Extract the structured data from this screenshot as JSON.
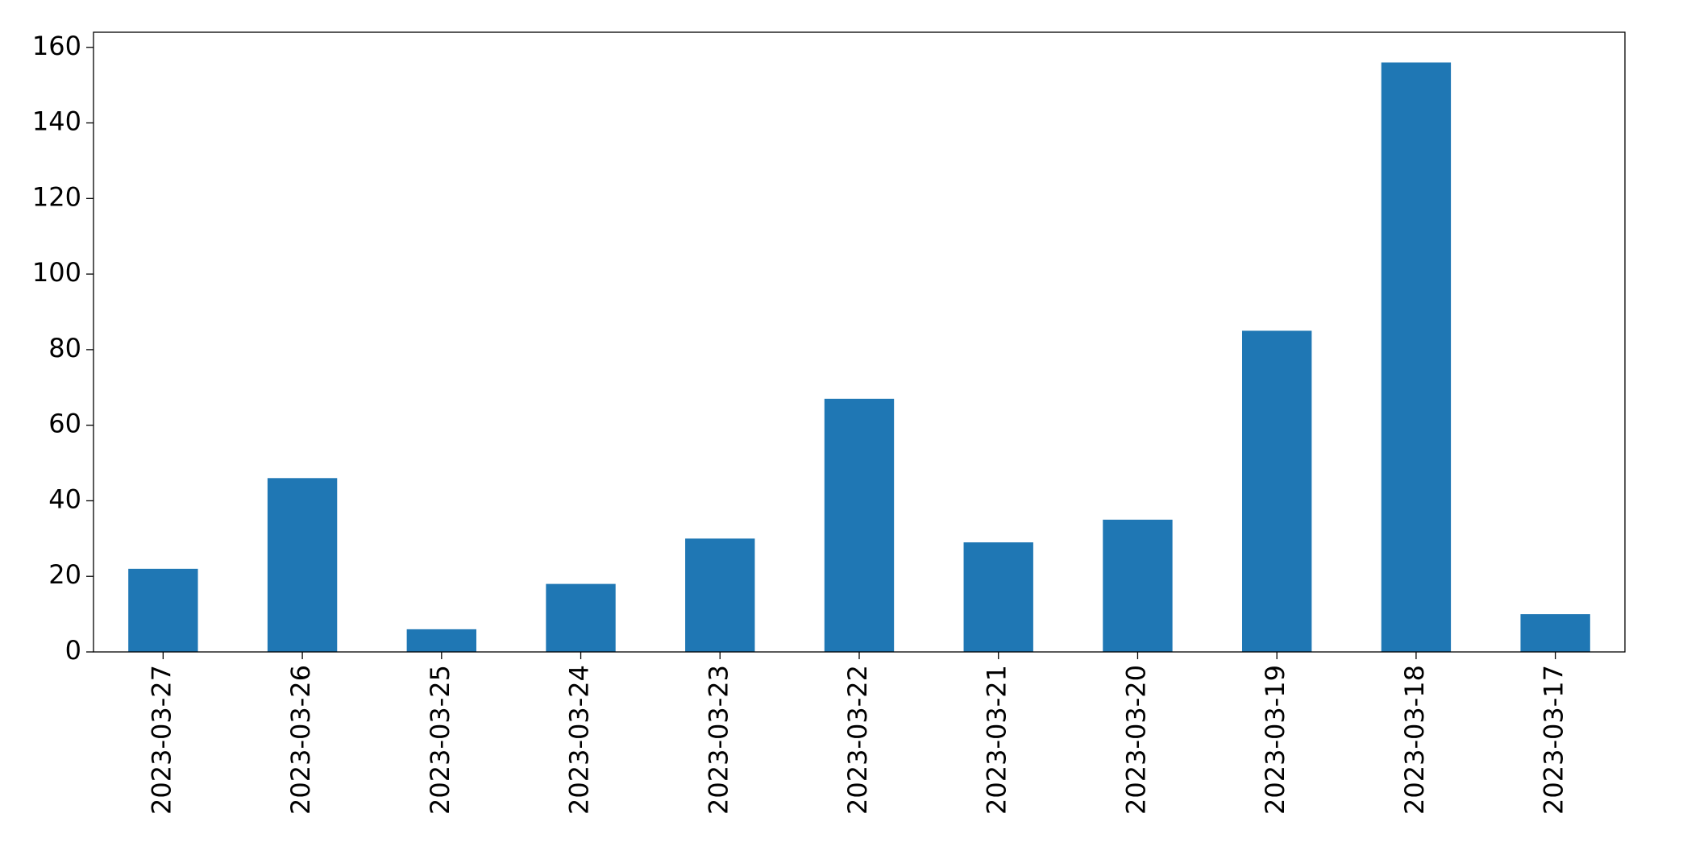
{
  "chart_data": {
    "type": "bar",
    "categories": [
      "2023-03-27",
      "2023-03-26",
      "2023-03-25",
      "2023-03-24",
      "2023-03-23",
      "2023-03-22",
      "2023-03-21",
      "2023-03-20",
      "2023-03-19",
      "2023-03-18",
      "2023-03-17"
    ],
    "values": [
      22,
      46,
      6,
      18,
      30,
      67,
      29,
      35,
      85,
      156,
      10
    ],
    "color": "#1f77b4",
    "ylim": [
      0,
      164
    ],
    "yticks": [
      0,
      20,
      40,
      60,
      80,
      100,
      120,
      140,
      160
    ],
    "grid": false
  }
}
